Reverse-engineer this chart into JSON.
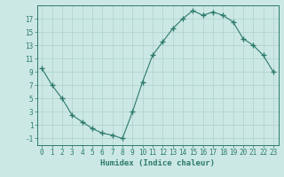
{
  "x": [
    0,
    1,
    2,
    3,
    4,
    5,
    6,
    7,
    8,
    9,
    10,
    11,
    12,
    13,
    14,
    15,
    16,
    17,
    18,
    19,
    20,
    21,
    22,
    23
  ],
  "y": [
    9.5,
    7.0,
    5.0,
    2.5,
    1.5,
    0.5,
    -0.2,
    -0.5,
    -1.0,
    3.0,
    7.5,
    11.5,
    13.5,
    15.5,
    17.0,
    18.2,
    17.5,
    18.0,
    17.5,
    16.5,
    14.0,
    13.0,
    11.5,
    9.0
  ],
  "line_color": "#2d7a6e",
  "marker": "+",
  "background_color": "#cce8e4",
  "grid_color": "#aed0cc",
  "xlabel": "Humidex (Indice chaleur)",
  "xlim": [
    -0.5,
    23.5
  ],
  "ylim": [
    -2,
    19
  ],
  "yticks": [
    -1,
    1,
    3,
    5,
    7,
    9,
    11,
    13,
    15,
    17
  ],
  "xticks": [
    0,
    1,
    2,
    3,
    4,
    5,
    6,
    7,
    8,
    9,
    10,
    11,
    12,
    13,
    14,
    15,
    16,
    17,
    18,
    19,
    20,
    21,
    22,
    23
  ],
  "axis_color": "#2d7a6e",
  "tick_color": "#2d7a6e",
  "xlabel_fontsize": 6.5,
  "tick_fontsize": 5.5
}
